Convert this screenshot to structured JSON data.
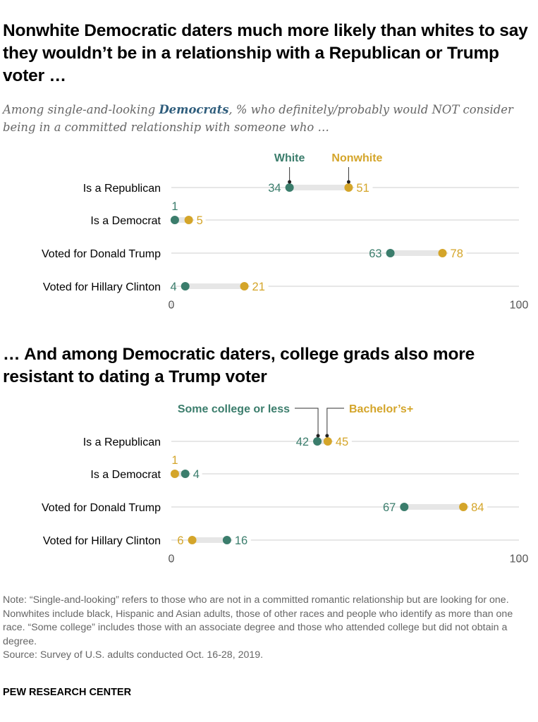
{
  "colors": {
    "green": "#3b7d6c",
    "gold": "#d4a52a",
    "subtitle_emphasis": "#2f5d7c",
    "bar": "#e6e6e6",
    "grid": "#cfcfcf"
  },
  "chart_data": [
    {
      "type": "dot",
      "title": "Nonwhite Democratic daters much more likely than whites to say they wouldn’t be in a relationship with a Republican or Trump voter …",
      "subtitle_parts": [
        "Among single-and-looking ",
        "Democrats",
        ", % who definitely/probably would NOT consider being in a committed relationship with someone who …"
      ],
      "categories": [
        "Is a Republican",
        "Is a Democrat",
        "Voted for Donald Trump",
        "Voted for Hillary Clinton"
      ],
      "series": [
        {
          "name": "White",
          "color": "#3b7d6c",
          "values": [
            34,
            1,
            63,
            4
          ]
        },
        {
          "name": "Nonwhite",
          "color": "#d4a52a",
          "values": [
            51,
            5,
            78,
            21
          ]
        }
      ],
      "xlim": [
        0,
        100
      ],
      "ticks": [
        "0",
        "100"
      ],
      "grid": true,
      "legend": "top, labels above first row"
    },
    {
      "type": "dot",
      "title": "… And among Democratic daters, college grads also more resistant to dating a Trump voter",
      "categories": [
        "Is a Republican",
        "Is a Democrat",
        "Voted for Donald Trump",
        "Voted for Hillary Clinton"
      ],
      "series": [
        {
          "name": "Some college or less",
          "color": "#3b7d6c",
          "values": [
            42,
            4,
            67,
            16
          ]
        },
        {
          "name": "Bachelor’s+",
          "color": "#d4a52a",
          "values": [
            45,
            1,
            84,
            6
          ]
        }
      ],
      "xlim": [
        0,
        100
      ],
      "ticks": [
        "0",
        "100"
      ],
      "grid": true,
      "legend": "top, labels above first row"
    }
  ],
  "note": "Note: “Single-and-looking” refers to those who are not in a committed romantic relationship but are looking for one. Nonwhites include black, Hispanic and Asian adults, those of other races and people who identify as more than one race. “Some college” includes those with an associate degree and those who attended college but did not obtain a degree.",
  "source": "Source: Survey of U.S. adults conducted Oct. 16-28, 2019.",
  "brand": "PEW RESEARCH CENTER"
}
